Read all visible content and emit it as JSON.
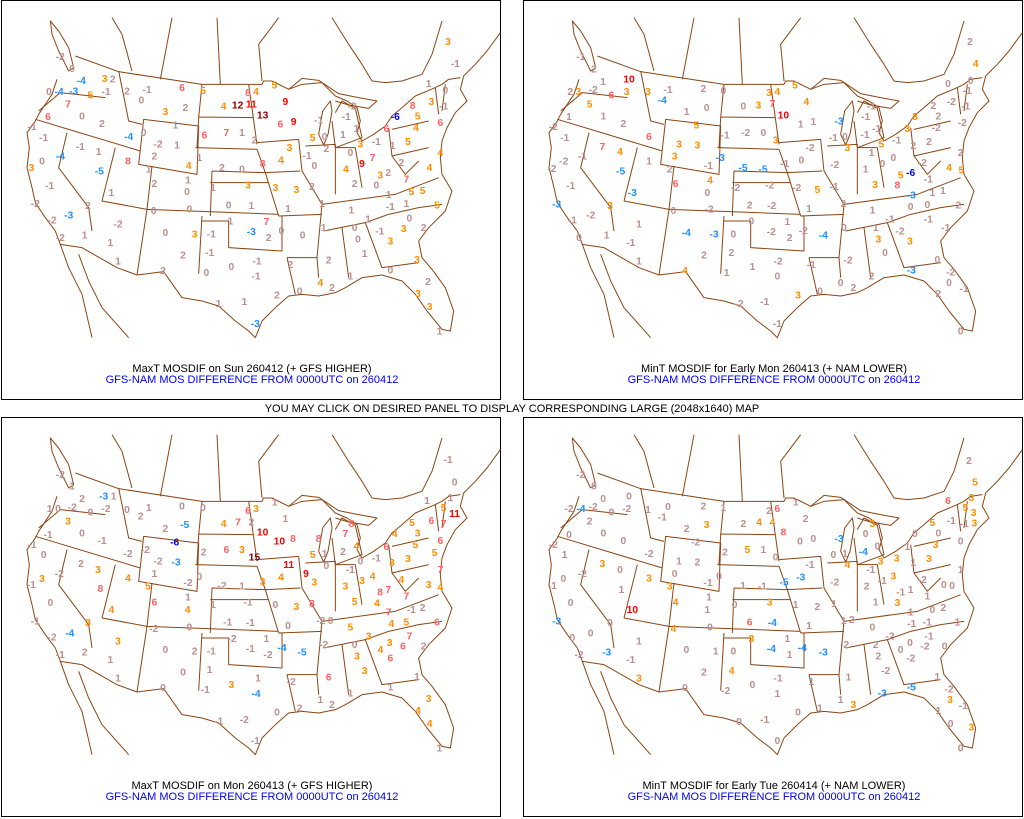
{
  "center_note": "YOU MAY CLICK ON DESIRED PANEL TO DISPLAY CORRESPONDING LARGE (2048x1640) MAP",
  "colors": {
    "map_lines": "#8b4513",
    "le_minus6": "#0000ff",
    "minus5_to_minus3": "#1e90ff",
    "minus2_to_2": "#bc8f8f",
    "3_to_5": "#ff8c00",
    "6_to_8": "#ff6060",
    "9_to_11": "#ff0000",
    "ge_12": "#8b0000",
    "caption_title": "#000000",
    "caption_subtitle": "#0000ff"
  },
  "panels": [
    {
      "title": "MaxT MOSDIF on Sun 260412 (+ GFS HIGHER)",
      "subtitle": "GFS-NAM MOS DIFFERENCE FROM 0000UTC on 260412",
      "values": [
        -2,
        0,
        -4,
        3,
        2,
        0,
        -4,
        -3,
        5,
        -1,
        7,
        6,
        0,
        -1,
        -1,
        2,
        -4,
        0,
        -1,
        1,
        -4,
        0,
        3,
        -5,
        8,
        -1,
        1,
        -2,
        -3,
        2,
        -2,
        -2,
        1,
        -2,
        1,
        1,
        2,
        -1,
        0,
        6,
        5,
        3,
        2,
        1,
        -2,
        1,
        2,
        1,
        4,
        2,
        1,
        0,
        0,
        0,
        0,
        3,
        -1,
        2,
        -1,
        2,
        0,
        4,
        12,
        11,
        8,
        4,
        5,
        13,
        9,
        9,
        6,
        6,
        7,
        1,
        2,
        1,
        2,
        0,
        8,
        4,
        3,
        3,
        3,
        3,
        2,
        1,
        0,
        1,
        1,
        1,
        7,
        -3,
        2,
        0,
        0,
        -1,
        -1,
        0,
        2,
        2,
        0,
        1,
        1,
        -3,
        -1,
        5,
        0,
        2,
        -1,
        0,
        1,
        1,
        -1,
        -2,
        0,
        4,
        9,
        7,
        3,
        -1,
        3,
        2,
        0,
        2,
        -6,
        6,
        8,
        5,
        4,
        5,
        1,
        2,
        7,
        4,
        4,
        5,
        5,
        5,
        1,
        1,
        -1,
        1,
        1,
        0,
        0,
        -1,
        3,
        0,
        3,
        2,
        1,
        2,
        1,
        1,
        3,
        0,
        4,
        2,
        1,
        3,
        2,
        3,
        1,
        3,
        -1,
        0,
        1,
        3,
        6,
        -1
      ]
    },
    {
      "title": "MinT MOSDIF for Early Mon 260413 (+ NAM LOWER)",
      "subtitle": "GFS-NAM MOS DIFFERENCE FROM 0000UTC on 260412",
      "values": [
        -1,
        2,
        1,
        10,
        2,
        3,
        -2,
        6,
        3,
        5,
        1,
        1,
        -2,
        -1,
        2,
        6,
        7,
        4,
        -1,
        -2,
        -2,
        -5,
        1,
        -1,
        -3,
        -3,
        -2,
        3,
        -1,
        0,
        1,
        1,
        -1,
        1,
        3,
        -1,
        -4,
        2,
        0,
        1,
        0,
        5,
        3,
        3,
        3,
        2,
        4,
        6,
        0,
        -1,
        0,
        -2,
        -4,
        -3,
        0,
        2,
        2,
        1,
        4,
        0,
        3,
        7,
        3,
        4,
        5,
        10,
        4,
        1,
        1,
        -1,
        -2,
        0,
        3,
        -3,
        -5,
        -5,
        -1,
        0,
        -2,
        -2,
        -2,
        -2,
        5,
        -1,
        2,
        -2,
        1,
        0,
        1,
        -2,
        2,
        -2,
        -4,
        -2,
        0,
        1,
        -1,
        3,
        0,
        -2,
        -1,
        -1,
        -3,
        -1,
        0,
        3,
        -2,
        -1,
        -1,
        -1,
        -1,
        1,
        1,
        0,
        0,
        5,
        -1,
        5,
        -6,
        8,
        3,
        3,
        3,
        2,
        2,
        -2,
        2,
        2,
        -2,
        -1,
        4,
        2,
        5,
        1,
        1,
        2,
        -3,
        0,
        0,
        1,
        -1,
        1,
        3,
        -2,
        3,
        -1,
        -1,
        0,
        -2,
        0,
        2,
        0,
        -3,
        0,
        2,
        2,
        2,
        0,
        -2,
        -1,
        0,
        2,
        4,
        0,
        0,
        -2,
        -2,
        -1,
        -1
      ]
    },
    {
      "title": "MaxT MOSDIF on Mon 260413 (+ GFS HIGHER)",
      "subtitle": "GFS-NAM MOS DIFFERENCE FROM 0000UTC on 260412",
      "values": [
        -2,
        1,
        2,
        -3,
        1,
        1,
        0,
        -2,
        0,
        -2,
        3,
        -1,
        0,
        -1,
        0,
        -1,
        -2,
        -2,
        2,
        3,
        -2,
        3,
        -1,
        8,
        4,
        0,
        4,
        -1,
        -4,
        3,
        -2,
        -1,
        2,
        3,
        1,
        1,
        0,
        1,
        2,
        0,
        0,
        2,
        -5,
        -6,
        -2,
        -3,
        1,
        5,
        -2,
        6,
        1,
        4,
        -2,
        0,
        0,
        2,
        -1,
        0,
        1,
        0,
        -1,
        4,
        7,
        2,
        6,
        3,
        1,
        10,
        15,
        10,
        8,
        11,
        9,
        2,
        6,
        3,
        0,
        -2,
        1,
        3,
        4,
        3,
        -1,
        0,
        3,
        8,
        1,
        -1,
        -1,
        0,
        -2,
        1,
        -1,
        -2,
        -4,
        -5,
        1,
        -4,
        3,
        -2,
        0,
        2,
        -1,
        -2,
        -1,
        1,
        8,
        5,
        1,
        0,
        2,
        4,
        7,
        8,
        -1,
        3,
        3,
        4,
        0,
        -1,
        8,
        7,
        4,
        5,
        4,
        6,
        5,
        3,
        5,
        3,
        3,
        4,
        7,
        3,
        7,
        7,
        -1,
        2,
        6,
        4,
        5,
        5,
        3,
        0,
        3,
        4,
        3,
        6,
        6,
        7,
        2,
        3,
        6,
        -2,
        -2,
        0,
        1,
        1,
        1,
        2,
        1,
        3,
        4,
        4,
        1,
        -1,
        0,
        1,
        1,
        5,
        11,
        6,
        7,
        6,
        5,
        4
      ]
    },
    {
      "title": "MinT MOSDIF for Early Tue 260414 (+ NAM LOWER)",
      "subtitle": "GFS-NAM MOS DIFFERENCE FROM 0000UTC on 260412",
      "values": [
        -2,
        0,
        0,
        0,
        -2,
        -4,
        -2,
        0,
        -2,
        2,
        0,
        0,
        -2,
        1,
        0,
        -2,
        3,
        0,
        -2,
        0,
        -1,
        1,
        3,
        0,
        10,
        -3,
        0,
        0,
        0,
        -2,
        -3,
        1,
        -1,
        3,
        1,
        0,
        -1,
        2,
        1,
        2,
        3,
        -2,
        1,
        2,
        0,
        3,
        -1,
        4,
        1,
        1,
        4,
        0,
        0,
        1,
        0,
        2,
        4,
        -2,
        0,
        2,
        4,
        4,
        2,
        6,
        1,
        8,
        2,
        5,
        1,
        0,
        0,
        1,
        -1,
        -5,
        -3,
        -1,
        -2,
        0,
        3,
        1,
        2,
        1,
        6,
        -4,
        1,
        3,
        1,
        -4,
        1,
        -4,
        -3,
        -1,
        1,
        0,
        1,
        0,
        1,
        0,
        -1,
        0,
        0,
        0,
        2,
        -3,
        0,
        1,
        4,
        0,
        3,
        0,
        -4,
        -1,
        2,
        -1,
        3,
        3,
        3,
        -1,
        1,
        3,
        1,
        0,
        1,
        5,
        0,
        3,
        3,
        1,
        -2,
        1,
        0,
        1,
        0,
        2,
        1,
        1,
        -1,
        -1,
        0,
        -2,
        2,
        2,
        0,
        0,
        -2,
        -2,
        -1,
        0,
        -2,
        1,
        -2,
        1,
        2,
        1,
        -5,
        -3,
        1,
        3,
        -2,
        3,
        -1,
        1,
        0,
        3,
        0,
        2,
        5,
        3,
        6,
        5,
        3,
        3,
        -1,
        -1,
        0,
        0
      ]
    }
  ]
}
